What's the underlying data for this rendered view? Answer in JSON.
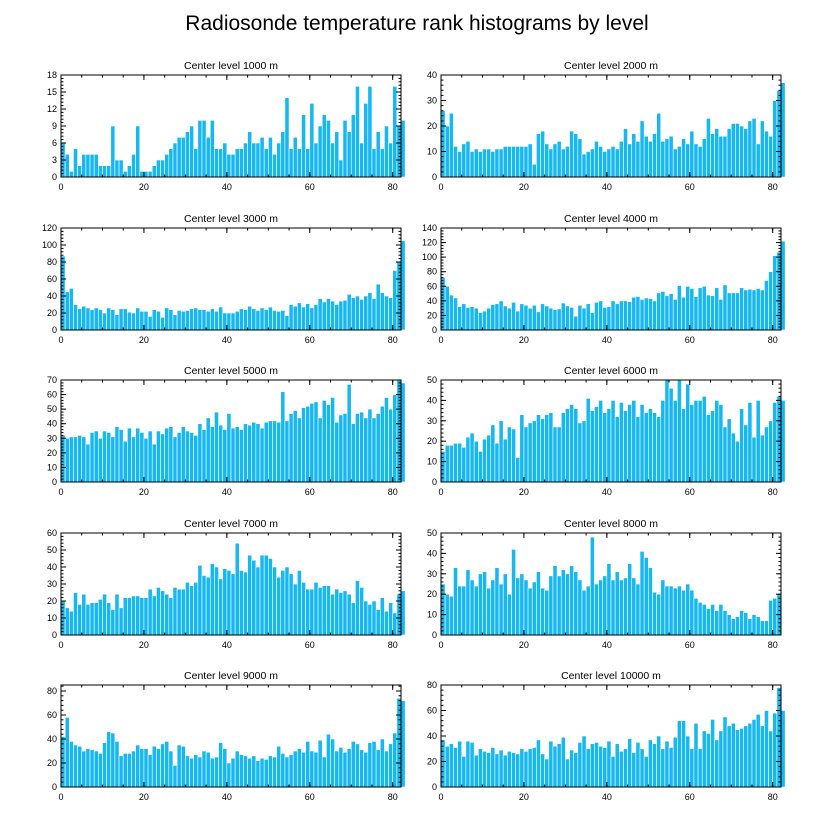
{
  "chart_data": {
    "type": "bar",
    "title": "Radiosonde temperature rank histograms by level",
    "bar_color": "#17b8ef",
    "panels": [
      {
        "title": "Center level 1000 m",
        "ylim": [
          0,
          18
        ],
        "yticks": [
          0,
          3,
          6,
          9,
          12,
          15,
          18
        ],
        "xlim": [
          0,
          82
        ],
        "xticks": [
          0,
          20,
          40,
          60,
          80
        ],
        "values": [
          6,
          4,
          1,
          5,
          2,
          4,
          4,
          4,
          4,
          2,
          2,
          2,
          9,
          3,
          3,
          1,
          2,
          4,
          9,
          1,
          1,
          1,
          2,
          3,
          3,
          4,
          5,
          6,
          7,
          7,
          8,
          9,
          5,
          10,
          10,
          7,
          10,
          5,
          5,
          6,
          4,
          4,
          5,
          5,
          6,
          8,
          6,
          6,
          7,
          5,
          7,
          4,
          6,
          8,
          14,
          5,
          7,
          5,
          11,
          5,
          13,
          6,
          9,
          11,
          10,
          6,
          8,
          3,
          10,
          8,
          11,
          16,
          6,
          13,
          16,
          5,
          8,
          5,
          9,
          6,
          16,
          9,
          10
        ]
      },
      {
        "title": "Center level 2000 m",
        "ylim": [
          0,
          40
        ],
        "yticks": [
          0,
          10,
          20,
          30,
          40
        ],
        "xlim": [
          0,
          82
        ],
        "xticks": [
          0,
          20,
          40,
          60,
          80
        ],
        "values": [
          26,
          20,
          25,
          12,
          10,
          13,
          14,
          10,
          11,
          10,
          11,
          11,
          10,
          11,
          11,
          12,
          12,
          12,
          12,
          12,
          12,
          13,
          5,
          17,
          18,
          13,
          11,
          13,
          14,
          11,
          12,
          18,
          17,
          15,
          9,
          10,
          11,
          14,
          12,
          10,
          11,
          12,
          11,
          14,
          19,
          13,
          17,
          14,
          22,
          16,
          14,
          17,
          25,
          14,
          15,
          16,
          11,
          12,
          15,
          13,
          18,
          13,
          12,
          15,
          23,
          17,
          19,
          16,
          16,
          19,
          21,
          21,
          20,
          19,
          22,
          23,
          13,
          22,
          18,
          16,
          30,
          34,
          37
        ]
      },
      {
        "title": "Center level 3000 m",
        "ylim": [
          0,
          120
        ],
        "yticks": [
          0,
          20,
          40,
          60,
          80,
          100,
          120
        ],
        "xlim": [
          0,
          82
        ],
        "xticks": [
          0,
          20,
          40,
          60,
          80
        ],
        "values": [
          87,
          45,
          49,
          30,
          25,
          28,
          26,
          24,
          26,
          24,
          20,
          26,
          24,
          18,
          25,
          25,
          21,
          20,
          26,
          22,
          22,
          16,
          24,
          22,
          15,
          26,
          24,
          18,
          23,
          22,
          23,
          25,
          26,
          24,
          24,
          22,
          25,
          22,
          27,
          20,
          20,
          20,
          22,
          25,
          24,
          28,
          25,
          23,
          26,
          24,
          27,
          23,
          22,
          23,
          17,
          30,
          28,
          32,
          27,
          31,
          26,
          30,
          37,
          33,
          37,
          34,
          30,
          34,
          35,
          42,
          38,
          40,
          36,
          40,
          44,
          37,
          54,
          44,
          40,
          38,
          70,
          80,
          105
        ]
      },
      {
        "title": "Center level 4000 m",
        "ylim": [
          0,
          140
        ],
        "yticks": [
          0,
          20,
          40,
          60,
          80,
          100,
          120,
          140
        ],
        "xlim": [
          0,
          82
        ],
        "xticks": [
          0,
          20,
          40,
          60,
          80
        ],
        "values": [
          72,
          60,
          48,
          44,
          32,
          36,
          31,
          32,
          30,
          24,
          26,
          30,
          35,
          36,
          40,
          33,
          30,
          38,
          26,
          36,
          34,
          30,
          34,
          25,
          36,
          33,
          30,
          28,
          29,
          37,
          33,
          31,
          19,
          34,
          30,
          36,
          24,
          38,
          40,
          31,
          32,
          40,
          36,
          40,
          40,
          39,
          45,
          46,
          42,
          44,
          43,
          40,
          51,
          53,
          47,
          50,
          42,
          61,
          45,
          60,
          57,
          46,
          58,
          60,
          48,
          47,
          58,
          42,
          62,
          51,
          51,
          51,
          58,
          55,
          56,
          55,
          57,
          55,
          68,
          80,
          102,
          107,
          122
        ]
      },
      {
        "title": "Center level 5000 m",
        "ylim": [
          0,
          70
        ],
        "yticks": [
          0,
          10,
          20,
          30,
          40,
          50,
          60,
          70
        ],
        "xlim": [
          0,
          82
        ],
        "xticks": [
          0,
          20,
          40,
          60,
          80
        ],
        "values": [
          32,
          30,
          31,
          31,
          32,
          31,
          26,
          34,
          35,
          30,
          35,
          34,
          31,
          38,
          36,
          28,
          37,
          31,
          37,
          34,
          30,
          35,
          26,
          35,
          33,
          37,
          38,
          31,
          34,
          38,
          35,
          34,
          32,
          40,
          36,
          44,
          38,
          48,
          39,
          36,
          47,
          37,
          38,
          36,
          40,
          39,
          41,
          40,
          37,
          41,
          42,
          42,
          41,
          62,
          42,
          47,
          49,
          44,
          51,
          52,
          54,
          55,
          44,
          56,
          53,
          58,
          41,
          46,
          47,
          67,
          40,
          47,
          48,
          44,
          50,
          44,
          47,
          52,
          58,
          50,
          60,
          70,
          68
        ]
      },
      {
        "title": "Center level 6000 m",
        "ylim": [
          0,
          50
        ],
        "yticks": [
          0,
          10,
          20,
          30,
          40,
          50
        ],
        "xlim": [
          0,
          82
        ],
        "xticks": [
          0,
          20,
          40,
          60,
          80
        ],
        "values": [
          15,
          18,
          18,
          19,
          19,
          17,
          22,
          24,
          20,
          15,
          21,
          23,
          28,
          19,
          30,
          21,
          27,
          26,
          12,
          33,
          27,
          29,
          30,
          33,
          31,
          33,
          34,
          27,
          27,
          34,
          36,
          38,
          36,
          29,
          30,
          41,
          35,
          37,
          40,
          34,
          36,
          40,
          32,
          39,
          35,
          38,
          40,
          32,
          38,
          34,
          36,
          34,
          32,
          40,
          50,
          46,
          40,
          50,
          36,
          48,
          38,
          40,
          40,
          42,
          33,
          35,
          40,
          38,
          27,
          31,
          24,
          20,
          36,
          28,
          39,
          22,
          40,
          23,
          27,
          30,
          39,
          42,
          40
        ]
      },
      {
        "title": "Center level 7000 m",
        "ylim": [
          0,
          60
        ],
        "yticks": [
          0,
          10,
          20,
          30,
          40,
          50,
          60
        ],
        "xlim": [
          0,
          82
        ],
        "xticks": [
          0,
          20,
          40,
          60,
          80
        ],
        "values": [
          20,
          16,
          14,
          25,
          18,
          24,
          18,
          19,
          19,
          21,
          24,
          19,
          15,
          24,
          16,
          22,
          22,
          23,
          23,
          22,
          22,
          27,
          23,
          28,
          26,
          24,
          22,
          28,
          27,
          27,
          31,
          29,
          31,
          41,
          35,
          34,
          42,
          40,
          33,
          39,
          38,
          36,
          54,
          38,
          37,
          47,
          44,
          40,
          47,
          47,
          45,
          40,
          34,
          38,
          40,
          36,
          30,
          38,
          31,
          27,
          27,
          31,
          28,
          29,
          29,
          24,
          27,
          25,
          26,
          24,
          19,
          32,
          28,
          20,
          18,
          20,
          15,
          22,
          14,
          19,
          13,
          24,
          26
        ]
      },
      {
        "title": "Center level 8000 m",
        "ylim": [
          0,
          50
        ],
        "yticks": [
          0,
          10,
          20,
          30,
          40,
          50
        ],
        "xlim": [
          0,
          82
        ],
        "xticks": [
          0,
          20,
          40,
          60,
          80
        ],
        "values": [
          25,
          20,
          19,
          33,
          24,
          24,
          32,
          27,
          24,
          30,
          31,
          23,
          27,
          33,
          25,
          30,
          20,
          42,
          28,
          30,
          27,
          23,
          26,
          31,
          23,
          22,
          29,
          34,
          29,
          32,
          30,
          34,
          31,
          27,
          22,
          24,
          48,
          25,
          27,
          29,
          35,
          27,
          31,
          27,
          28,
          35,
          28,
          25,
          41,
          38,
          33,
          21,
          20,
          27,
          24,
          24,
          23,
          24,
          22,
          25,
          22,
          18,
          16,
          15,
          13,
          15,
          12,
          15,
          12,
          10,
          8,
          9,
          12,
          11,
          8,
          10,
          9,
          7,
          7,
          17,
          18,
          20
        ]
      },
      {
        "title": "Center level 9000 m",
        "ylim": [
          0,
          85
        ],
        "yticks": [
          0,
          20,
          40,
          60,
          80
        ],
        "xlim": [
          0,
          82
        ],
        "xticks": [
          0,
          20,
          40,
          60,
          80
        ],
        "values": [
          42,
          58,
          38,
          35,
          34,
          30,
          32,
          31,
          30,
          28,
          37,
          46,
          45,
          38,
          26,
          28,
          28,
          30,
          35,
          32,
          32,
          27,
          34,
          32,
          36,
          38,
          30,
          18,
          35,
          34,
          26,
          24,
          27,
          25,
          30,
          29,
          24,
          25,
          37,
          32,
          20,
          24,
          30,
          27,
          26,
          24,
          26,
          22,
          24,
          23,
          26,
          25,
          34,
          28,
          25,
          27,
          30,
          32,
          29,
          38,
          30,
          29,
          39,
          25,
          44,
          40,
          30,
          33,
          29,
          32,
          38,
          36,
          31,
          29,
          37,
          38,
          31,
          40,
          30,
          36,
          45,
          74,
          72
        ]
      },
      {
        "title": "Center level 10000 m",
        "ylim": [
          0,
          80
        ],
        "yticks": [
          0,
          20,
          40,
          60,
          80
        ],
        "xlim": [
          0,
          82
        ],
        "xticks": [
          0,
          20,
          40,
          60,
          80
        ],
        "values": [
          37,
          32,
          34,
          31,
          36,
          24,
          36,
          35,
          25,
          30,
          28,
          27,
          31,
          26,
          29,
          25,
          28,
          27,
          26,
          30,
          28,
          30,
          31,
          37,
          26,
          22,
          36,
          32,
          34,
          39,
          22,
          29,
          27,
          35,
          40,
          30,
          34,
          35,
          32,
          31,
          36,
          24,
          34,
          28,
          30,
          38,
          27,
          35,
          30,
          24,
          37,
          34,
          40,
          30,
          36,
          31,
          39,
          52,
          52,
          40,
          30,
          50,
          30,
          44,
          42,
          53,
          37,
          44,
          55,
          48,
          50,
          45,
          46,
          48,
          50,
          53,
          57,
          48,
          60,
          44,
          58,
          78,
          60
        ]
      }
    ]
  }
}
